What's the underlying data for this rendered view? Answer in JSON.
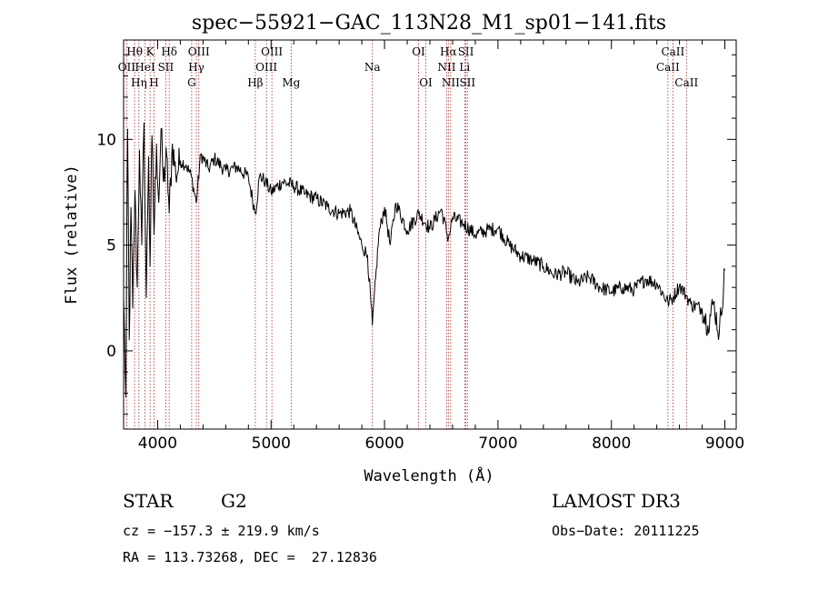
{
  "chart_data": {
    "type": "line",
    "title": "spec−55921−GAC_113N28_M1_sp01−141.fits",
    "xlabel": "Wavelength (Å)",
    "ylabel": "Flux (relative)",
    "xlim": [
      3700,
      9100
    ],
    "ylim": [
      -3.7,
      14.7
    ],
    "xticks": [
      4000,
      5000,
      6000,
      7000,
      8000,
      9000
    ],
    "yticks": [
      0,
      5,
      10
    ],
    "series": [
      {
        "x": [
          3700,
          3720,
          3735,
          3750,
          3765,
          3780,
          3800,
          3820,
          3840,
          3860,
          3880,
          3900,
          3920,
          3933,
          3950,
          3968,
          3990,
          4010,
          4030,
          4050,
          4080,
          4102,
          4130,
          4160,
          4200,
          4250,
          4300,
          4340,
          4380,
          4450,
          4500,
          4600,
          4700,
          4800,
          4861,
          4900,
          4950,
          5000,
          5100,
          5200,
          5300,
          5400,
          5500,
          5600,
          5700,
          5800,
          5850,
          5893,
          5950,
          6000,
          6050,
          6100,
          6200,
          6300,
          6400,
          6500,
          6563,
          6600,
          6700,
          6800,
          6900,
          7000,
          7100,
          7200,
          7300,
          7400,
          7500,
          7600,
          7700,
          7800,
          7900,
          8000,
          8100,
          8200,
          8300,
          8400,
          8498,
          8542,
          8600,
          8662,
          8700,
          8800,
          8850,
          8900,
          8950,
          9000
        ],
        "y": [
          2.5,
          -2.2,
          10.5,
          0.5,
          6.8,
          2.0,
          7.6,
          3.0,
          9.5,
          5.0,
          10.8,
          2.5,
          9.2,
          4.0,
          10.2,
          5.5,
          9.8,
          7.0,
          10.5,
          8.0,
          9.2,
          6.5,
          9.8,
          8.3,
          9.0,
          8.8,
          8.2,
          7.0,
          9.3,
          8.6,
          9.1,
          8.5,
          8.7,
          8.2,
          6.5,
          8.3,
          8.0,
          7.5,
          8.0,
          7.8,
          7.4,
          7.2,
          6.8,
          6.5,
          6.6,
          5.0,
          4.5,
          1.2,
          5.5,
          6.8,
          5.0,
          7.0,
          5.7,
          6.5,
          5.8,
          6.7,
          5.3,
          6.3,
          6.0,
          5.5,
          5.7,
          5.8,
          5.0,
          4.5,
          4.3,
          4.0,
          3.6,
          3.7,
          3.2,
          3.5,
          3.0,
          2.8,
          3.0,
          2.9,
          3.4,
          3.2,
          2.3,
          2.5,
          3.1,
          2.6,
          2.2,
          2.0,
          1.2,
          2.3,
          0.8,
          3.8
        ]
      }
    ],
    "lines": [
      {
        "w": 3727,
        "label": "OII",
        "row": 2
      },
      {
        "w": 3797,
        "label": "Hθ",
        "row": 1
      },
      {
        "w": 3835,
        "label": "Hη",
        "row": 3
      },
      {
        "w": 3889,
        "label": "HeI",
        "row": 2
      },
      {
        "w": 3933,
        "label": "K",
        "row": 1
      },
      {
        "w": 3968,
        "label": "H",
        "row": 3
      },
      {
        "w": 4072,
        "label": "SII",
        "row": 2
      },
      {
        "w": 4102,
        "label": "Hδ",
        "row": 1
      },
      {
        "w": 4300,
        "label": "G",
        "row": 3
      },
      {
        "w": 4341,
        "label": "Hγ",
        "row": 2
      },
      {
        "w": 4363,
        "label": "OIII",
        "row": 1
      },
      {
        "w": 4861,
        "label": "Hβ",
        "row": 3
      },
      {
        "w": 4959,
        "label": "OIII",
        "row": 2
      },
      {
        "w": 5007,
        "label": "OIII",
        "row": 1
      },
      {
        "w": 5177,
        "label": "Mg",
        "row": 3
      },
      {
        "w": 5893,
        "label": "Na",
        "row": 2
      },
      {
        "w": 6300,
        "label": "OI",
        "row": 1
      },
      {
        "w": 6364,
        "label": "OI",
        "row": 3
      },
      {
        "w": 6548,
        "label": "NII",
        "row": 2
      },
      {
        "w": 6563,
        "label": "Hα",
        "row": 1
      },
      {
        "w": 6583,
        "label": "NII",
        "row": 3
      },
      {
        "w": 6707,
        "label": "Li",
        "row": 2
      },
      {
        "w": 6717,
        "label": "SII",
        "row": 1
      },
      {
        "w": 6731,
        "label": "SII",
        "row": 3
      },
      {
        "w": 8498,
        "label": "CaII",
        "row": 2
      },
      {
        "w": 8542,
        "label": "CaII",
        "row": 1
      },
      {
        "w": 8662,
        "label": "CaII",
        "row": 3
      }
    ],
    "colors": {
      "spectrum": "#000000",
      "lines": "#b22222",
      "axes": "#000000"
    }
  },
  "info": {
    "class": "STAR",
    "subclass": "G2",
    "survey": "LAMOST DR3",
    "cz": "cz = −157.3 ± 219.9 km/s",
    "obsdate": "Obs−Date: 20111225",
    "coords": "RA = 113.73268, DEC =  27.12836"
  }
}
